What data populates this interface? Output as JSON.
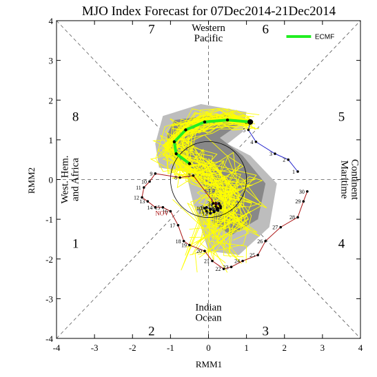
{
  "chart_data": {
    "type": "line",
    "title": "MJO Index Forecast for 07Dec2014-21Dec2014",
    "xlabel": "RMM1",
    "ylabel": "RMM2",
    "xlim": [
      -4,
      4
    ],
    "ylim": [
      -4,
      4
    ],
    "x_ticks": [
      "-4",
      "-3",
      "-2",
      "-1",
      "0",
      "1",
      "2",
      "3",
      "4"
    ],
    "y_ticks": [
      "-4",
      "-3",
      "-2",
      "-1",
      "0",
      "1",
      "2",
      "3",
      "4"
    ],
    "grid": false,
    "phase_labels": [
      {
        "text": "1",
        "x": -3.5,
        "y": -1.6
      },
      {
        "text": "2",
        "x": -1.5,
        "y": -3.8
      },
      {
        "text": "3",
        "x": 1.5,
        "y": -3.8
      },
      {
        "text": "4",
        "x": 3.5,
        "y": -1.6
      },
      {
        "text": "5",
        "x": 3.5,
        "y": 1.6
      },
      {
        "text": "6",
        "x": 1.5,
        "y": 3.8
      },
      {
        "text": "7",
        "x": -1.5,
        "y": 3.8
      },
      {
        "text": "8",
        "x": -3.5,
        "y": 1.6
      }
    ],
    "region_labels": {
      "top": [
        "Western",
        "Pacific"
      ],
      "bottom": [
        "Indian",
        "Ocean"
      ],
      "left": [
        "West. Hem.",
        "and Africa"
      ],
      "right": [
        "Maritime",
        "Continent"
      ]
    },
    "legend": {
      "position": "top-right",
      "entries": [
        {
          "name": "ECMF",
          "color": "#22ee22"
        }
      ]
    },
    "inset_labels": [
      "SEP",
      "NOV"
    ],
    "colors": {
      "ensemble": "#ffff00",
      "spread_dark": "#888888",
      "spread_light": "#bdbdbd",
      "sep_path": "#2222aa",
      "nov_path": "#aa1111",
      "dec_path": "#2222cc",
      "forecast": "#22ee22"
    },
    "series": [
      {
        "name": "SEP",
        "color": "#2222aa",
        "labels": [
          "3",
          "4",
          "5",
          "6",
          "7",
          "8",
          "9",
          "10",
          "11",
          "12",
          "13",
          "14",
          "15"
        ],
        "points": [
          [
            0.2,
            -0.6
          ],
          [
            0.3,
            -0.65
          ],
          [
            0.32,
            -0.72
          ],
          [
            0.25,
            -0.78
          ],
          [
            0.15,
            -0.8
          ],
          [
            0.05,
            -0.75
          ],
          [
            -0.05,
            -0.7
          ],
          [
            -0.1,
            -0.72
          ],
          [
            -0.05,
            -0.8
          ],
          [
            0.05,
            -0.85
          ],
          [
            0.15,
            -0.82
          ],
          [
            0.22,
            -0.75
          ],
          [
            0.2,
            -0.68
          ]
        ]
      },
      {
        "name": "NOV",
        "color": "#aa1111",
        "labels": [
          "3",
          "4",
          "5",
          "6",
          "7",
          "8",
          "9",
          "10",
          "11",
          "12",
          "13",
          "14",
          "15",
          "16",
          "17",
          "18",
          "19",
          "20",
          "21",
          "22",
          "23",
          "24",
          "25",
          "26",
          "27",
          "28",
          "29",
          "30"
        ],
        "points": [
          [
            0.12,
            -0.6
          ],
          [
            0.28,
            -0.6
          ],
          [
            0.32,
            -0.68
          ],
          [
            0.25,
            -0.72
          ],
          [
            -0.4,
            0.1
          ],
          [
            -0.75,
            0.05
          ],
          [
            -1.4,
            0.15
          ],
          [
            -1.55,
            -0.05
          ],
          [
            -1.7,
            -0.2
          ],
          [
            -1.75,
            -0.45
          ],
          [
            -1.6,
            -0.55
          ],
          [
            -1.4,
            -0.7
          ],
          [
            -1.2,
            -0.7
          ],
          [
            -1.0,
            -0.8
          ],
          [
            -0.8,
            -1.15
          ],
          [
            -0.65,
            -1.55
          ],
          [
            -0.5,
            -1.65
          ],
          [
            -0.1,
            -1.8
          ],
          [
            0.1,
            -2.05
          ],
          [
            0.4,
            -2.25
          ],
          [
            0.6,
            -2.2
          ],
          [
            0.9,
            -2.05
          ],
          [
            1.3,
            -1.9
          ],
          [
            1.5,
            -1.55
          ],
          [
            1.9,
            -1.2
          ],
          [
            2.35,
            -0.95
          ],
          [
            2.5,
            -0.55
          ],
          [
            2.6,
            -0.3
          ]
        ]
      },
      {
        "name": "DEC",
        "color": "#2222cc",
        "labels": [
          "1",
          "2",
          "3",
          "4",
          "5",
          "6"
        ],
        "points": [
          [
            2.35,
            0.2
          ],
          [
            2.1,
            0.5
          ],
          [
            1.75,
            0.65
          ],
          [
            1.25,
            0.95
          ],
          [
            1.05,
            1.25
          ],
          [
            1.1,
            1.45
          ]
        ]
      },
      {
        "name": "ECMF",
        "color": "#22ee22",
        "points": [
          [
            1.1,
            1.45
          ],
          [
            0.5,
            1.5
          ],
          [
            -0.1,
            1.45
          ],
          [
            -0.6,
            1.25
          ],
          [
            -0.9,
            0.95
          ],
          [
            -0.85,
            0.65
          ],
          [
            -0.5,
            0.4
          ]
        ]
      }
    ]
  }
}
